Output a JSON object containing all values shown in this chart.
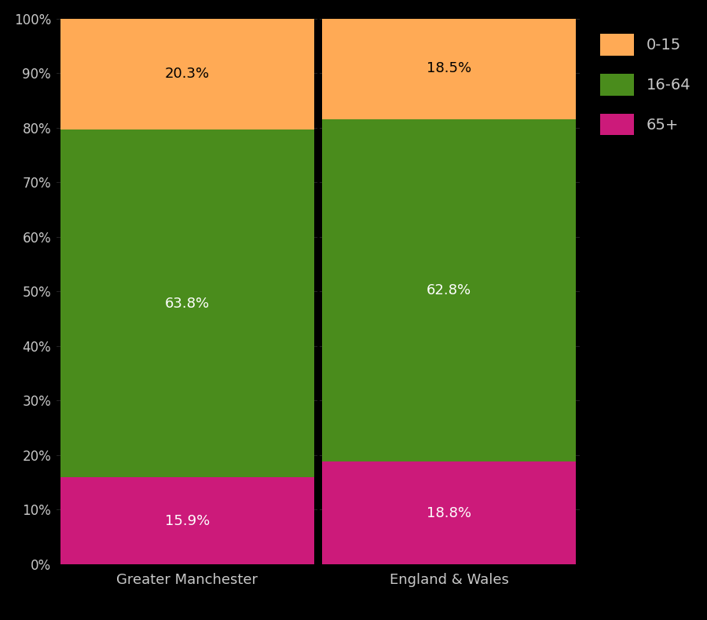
{
  "categories": [
    "Greater Manchester",
    "England & Wales"
  ],
  "segments": {
    "65+": [
      15.9,
      18.8
    ],
    "16-64": [
      63.8,
      62.8
    ],
    "0-15": [
      20.3,
      18.5
    ]
  },
  "colors": {
    "0-15": "#FFAA55",
    "16-64": "#4A8C1C",
    "65+": "#CC1A7A"
  },
  "label_colors": {
    "0-15": "#000000",
    "16-64": "#FFFFFF",
    "65+": "#FFFFFF"
  },
  "background_color": "#000000",
  "text_color": "#C8C8C8",
  "bar_edge_color": "#000000",
  "ylim": [
    0,
    100
  ],
  "ytick_labels": [
    "0%",
    "10%",
    "20%",
    "30%",
    "40%",
    "50%",
    "60%",
    "70%",
    "80%",
    "90%",
    "100%"
  ],
  "ytick_values": [
    0,
    10,
    20,
    30,
    40,
    50,
    60,
    70,
    80,
    90,
    100
  ],
  "legend_order": [
    "0-15",
    "16-64",
    "65+"
  ],
  "bar_width": 0.97,
  "figsize": [
    9.0,
    7.9
  ],
  "dpi": 100
}
